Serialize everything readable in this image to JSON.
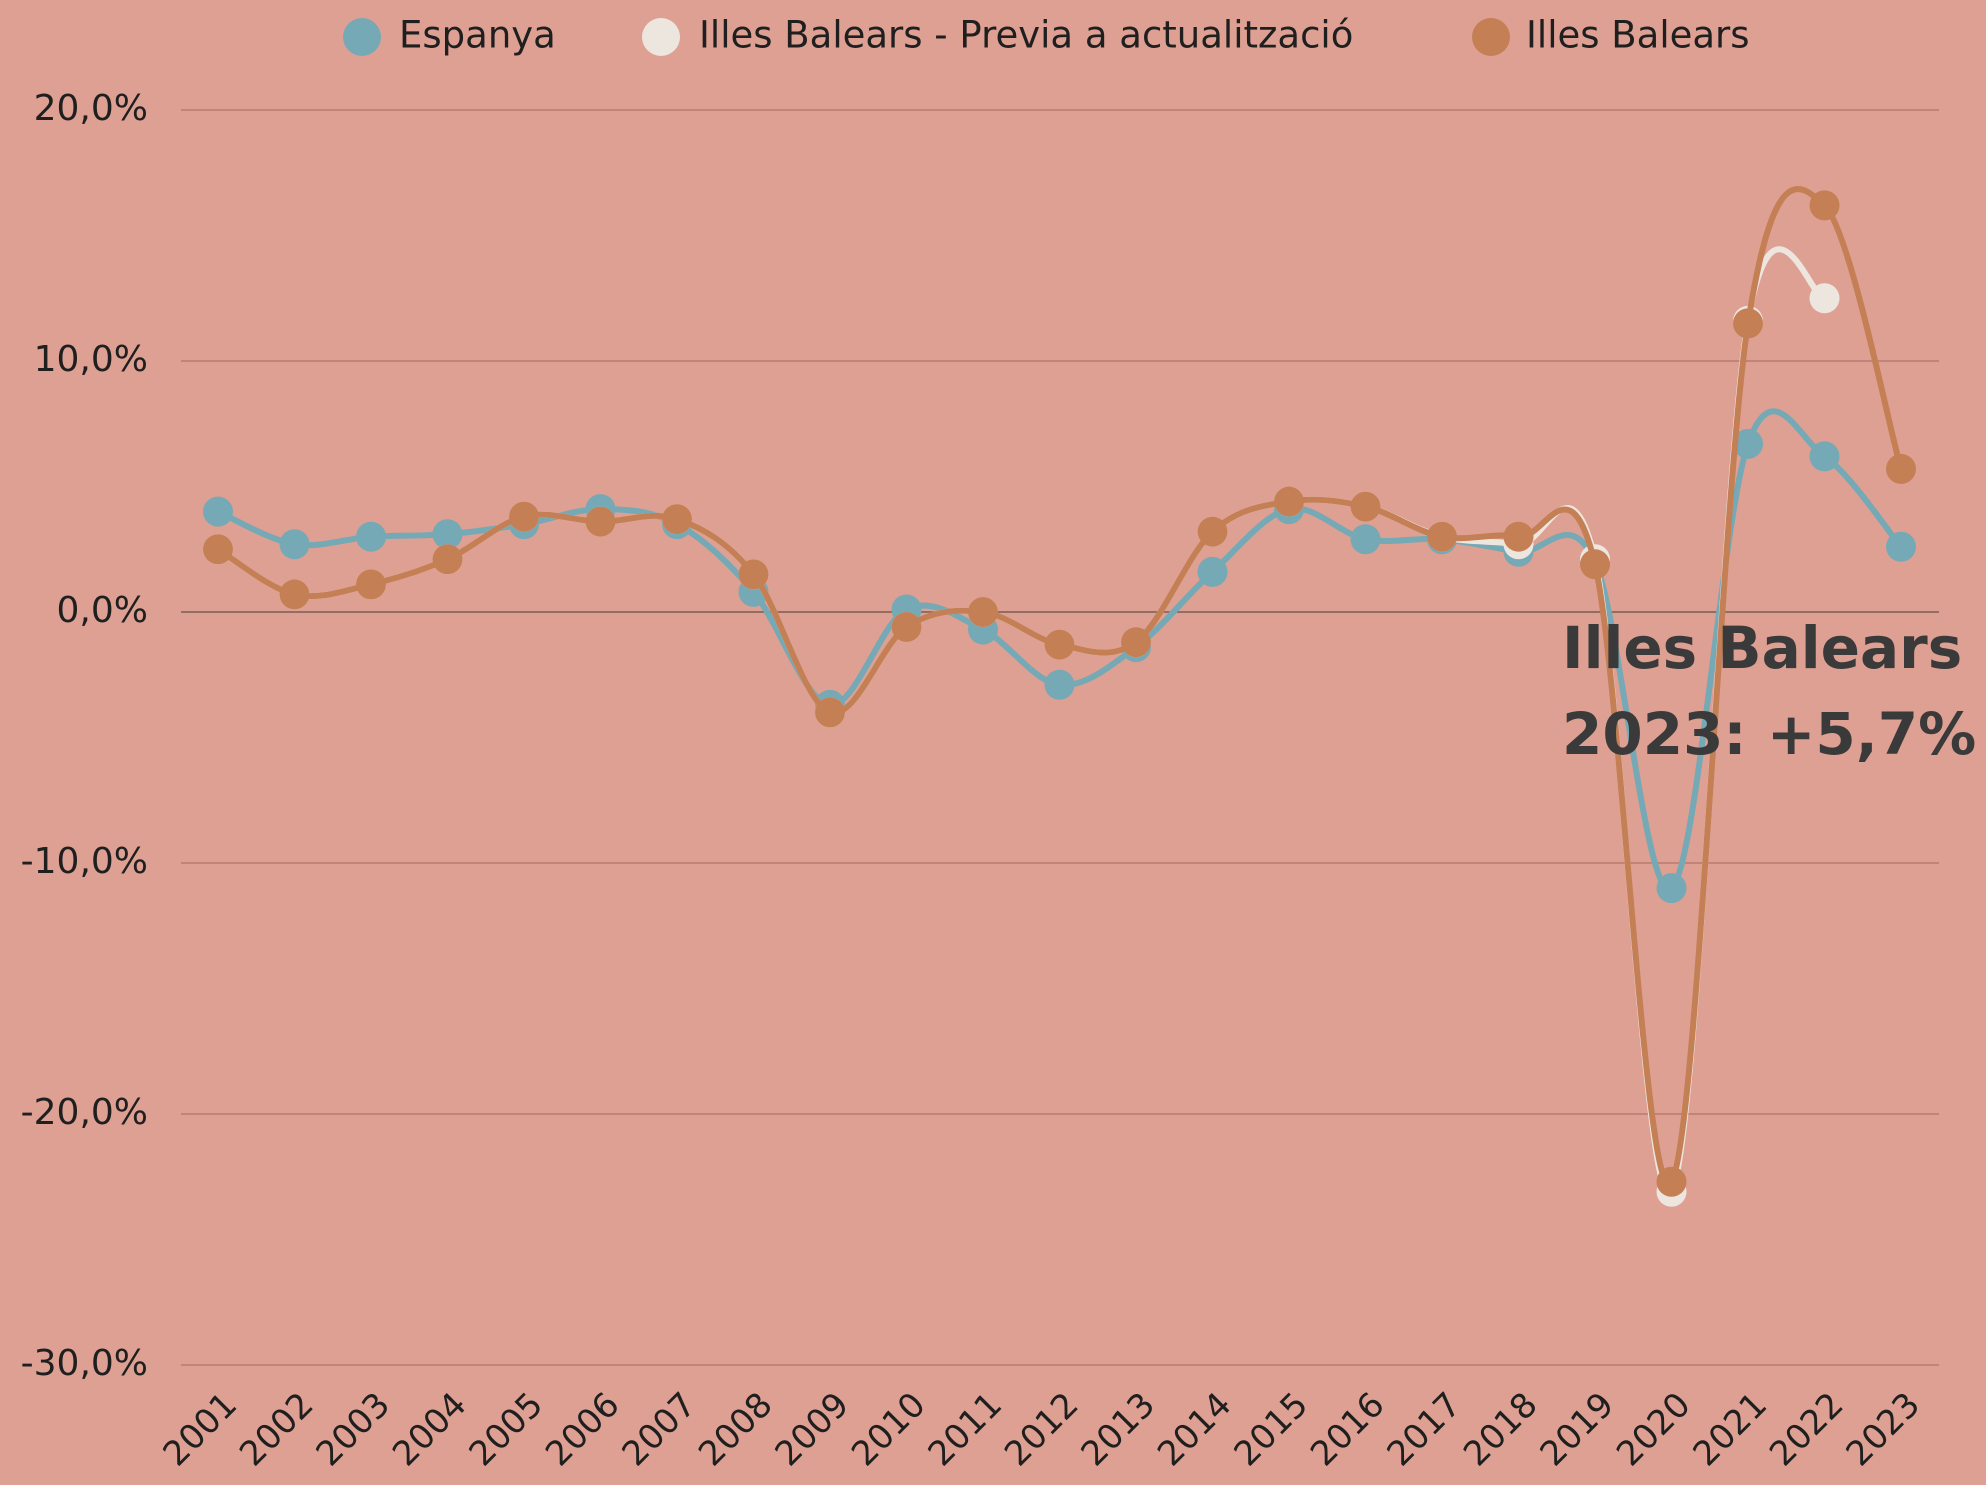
{
  "chart_data": {
    "type": "line",
    "categories": [
      "2001",
      "2002",
      "2003",
      "2004",
      "2005",
      "2006",
      "2007",
      "2008",
      "2009",
      "2010",
      "2011",
      "2012",
      "2013",
      "2014",
      "2015",
      "2016",
      "2017",
      "2018",
      "2019",
      "2020",
      "2021",
      "2022",
      "2023"
    ],
    "series": [
      {
        "name": "Espanya",
        "color": "#74a9b5",
        "values": [
          4.0,
          2.7,
          3.0,
          3.1,
          3.5,
          4.1,
          3.5,
          0.8,
          -3.7,
          0.1,
          -0.7,
          -2.9,
          -1.4,
          1.6,
          4.1,
          2.9,
          2.9,
          2.4,
          2.0,
          -11.0,
          6.7,
          6.2,
          2.6
        ]
      },
      {
        "name": "Illes Balears - Previa a actualització",
        "color": "#ede6df",
        "values": [
          2.5,
          0.7,
          1.1,
          2.1,
          3.8,
          3.6,
          3.7,
          1.5,
          -4.0,
          -0.6,
          0.0,
          -1.3,
          -1.2,
          3.2,
          4.4,
          4.2,
          3.0,
          2.7,
          2.1,
          -23.1,
          11.6,
          12.5,
          null
        ]
      },
      {
        "name": "Illes Balears",
        "color": "#c47f55",
        "values": [
          2.5,
          0.7,
          1.1,
          2.1,
          3.8,
          3.6,
          3.7,
          1.5,
          -4.0,
          -0.6,
          0.0,
          -1.3,
          -1.2,
          3.2,
          4.4,
          4.2,
          3.0,
          3.0,
          1.9,
          -22.7,
          11.5,
          16.2,
          5.7
        ]
      }
    ],
    "ylim": [
      -30,
      20
    ],
    "yticks": [
      {
        "value": -30,
        "label": "-30,0%"
      },
      {
        "value": -20,
        "label": "-20,0%"
      },
      {
        "value": -10,
        "label": "-10,0%"
      },
      {
        "value": 0,
        "label": "0,0%"
      },
      {
        "value": 10,
        "label": "10,0%"
      },
      {
        "value": 20,
        "label": "20,0%"
      }
    ],
    "grid": true,
    "legend": "top",
    "annotation": [
      "Illes Balears",
      "2023:  +5,7%"
    ]
  }
}
